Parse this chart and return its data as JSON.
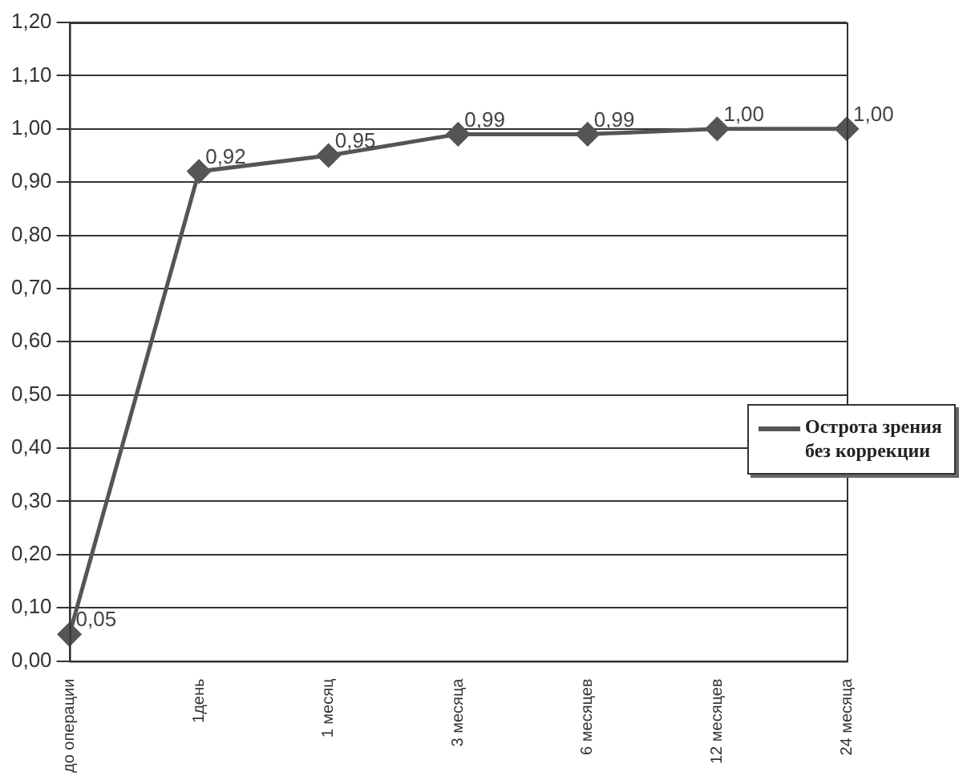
{
  "chart_data": {
    "type": "line",
    "categories": [
      "до операции",
      "1день",
      "1 месяц",
      "3 месяца",
      "6 месяцев",
      "12 месяцев",
      "24 месяца"
    ],
    "series": [
      {
        "name": "Острота зрения без коррекции",
        "color": "#555555",
        "values": [
          0.05,
          0.92,
          0.95,
          0.99,
          0.99,
          1.0,
          1.0
        ],
        "value_labels": [
          "0,05",
          "0,92",
          "0,95",
          "0,99",
          "0,99",
          "1,00",
          "1,00"
        ]
      }
    ],
    "ylim": [
      0,
      1.2
    ],
    "yticks": [
      {
        "value": 0,
        "label": "0,00"
      },
      {
        "value": 0.1,
        "label": "0,10"
      },
      {
        "value": 0.2,
        "label": "0,20"
      },
      {
        "value": 0.3,
        "label": "0,30"
      },
      {
        "value": 0.4,
        "label": "0,40"
      },
      {
        "value": 0.5,
        "label": "0,50"
      },
      {
        "value": 0.6,
        "label": "0,60"
      },
      {
        "value": 0.7,
        "label": "0,70"
      },
      {
        "value": 0.8,
        "label": "0,80"
      },
      {
        "value": 0.9,
        "label": "0,90"
      },
      {
        "value": 1.0,
        "label": "1,00"
      },
      {
        "value": 1.1,
        "label": "1,10"
      },
      {
        "value": 1.2,
        "label": "1,20"
      }
    ],
    "grid": "y",
    "legend": "right",
    "marker": "diamond",
    "line_style": "solid"
  }
}
